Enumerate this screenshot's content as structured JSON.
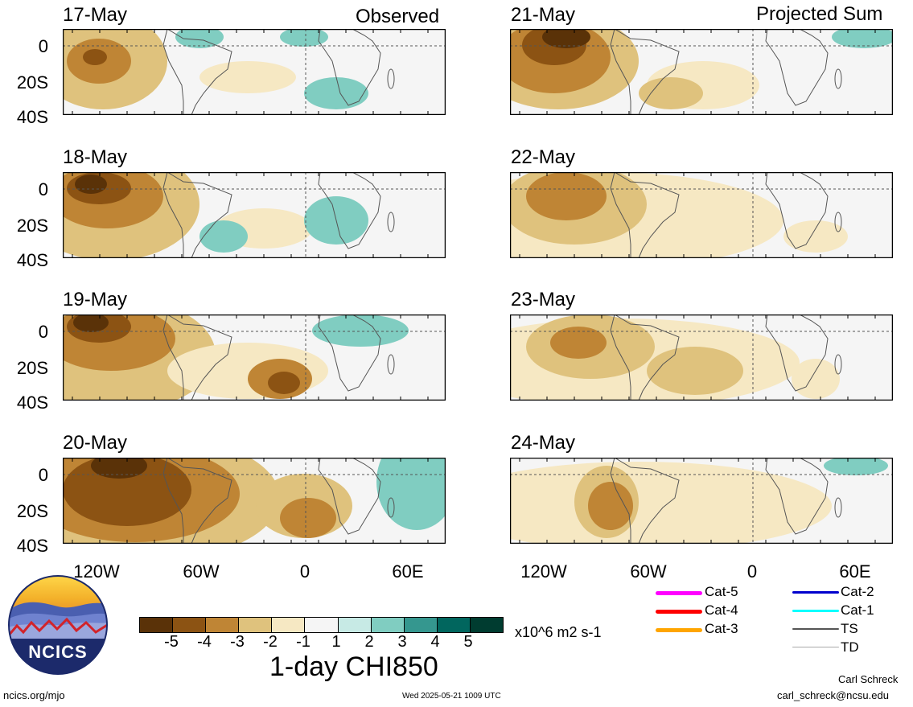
{
  "headers": {
    "observed": "Observed",
    "projected": "Projected Sum"
  },
  "panels_left": [
    {
      "date": "17-May"
    },
    {
      "date": "18-May"
    },
    {
      "date": "19-May"
    },
    {
      "date": "20-May"
    }
  ],
  "panels_right": [
    {
      "date": "21-May"
    },
    {
      "date": "22-May"
    },
    {
      "date": "23-May"
    },
    {
      "date": "24-May"
    }
  ],
  "lat_labels": [
    "0",
    "20S",
    "40S"
  ],
  "lon_labels": [
    "120W",
    "60W",
    "0",
    "60E"
  ],
  "colorbar": {
    "colors": [
      "#5a3208",
      "#8c5313",
      "#bf8535",
      "#dfc27d",
      "#f6e8c3",
      "#f5f5f5",
      "#c7eae5",
      "#80cdc1",
      "#35978f",
      "#01665e",
      "#003c30"
    ],
    "labels": [
      "-5",
      "-4",
      "-3",
      "-2",
      "-1",
      "1",
      "2",
      "3",
      "4",
      "5"
    ],
    "units": "x10^6 m2 s-1",
    "title": "1-day CHI850"
  },
  "legend": [
    {
      "label": "Cat-5",
      "color": "#ff00ff"
    },
    {
      "label": "Cat-4",
      "color": "#ff0000"
    },
    {
      "label": "Cat-3",
      "color": "#ffa500"
    },
    {
      "label": "Cat-2",
      "color": "#0000cd"
    },
    {
      "label": "Cat-1",
      "color": "#00ffff"
    },
    {
      "label": "TS",
      "color": "#555555"
    },
    {
      "label": "TD",
      "color": "#aaaaaa"
    }
  ],
  "logo": {
    "text": "NCICS"
  },
  "footer": {
    "url": "ncics.org/mjo",
    "timestamp": "Wed 2025-05-21 1009 UTC",
    "author": "Carl Schreck",
    "email": "carl_schreck@ncsu.edu"
  }
}
